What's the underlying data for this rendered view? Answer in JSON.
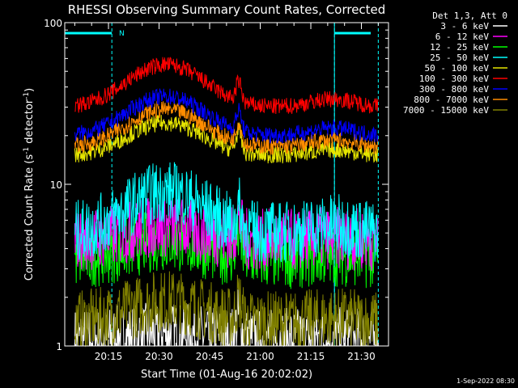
{
  "chart_data": {
    "type": "line",
    "title": "RHESSI Observing Summary Count Rates, Corrected",
    "xlabel": "Start Time (01-Aug-16 20:02:02)",
    "ylabel": "Corrected Count Rate (s",
    "ylabel_sup1": "-1",
    "ylabel_mid": " detector",
    "ylabel_sup2": "-1",
    "ylabel_end": ")",
    "yscale": "log",
    "ylim": [
      1,
      100
    ],
    "y_ticks": [
      "1",
      "10",
      "100"
    ],
    "xlim_minutes": [
      20.0333,
      21.6333
    ],
    "x_ticks": [
      "20:15",
      "20:30",
      "20:45",
      "21:00",
      "21:15",
      "21:30"
    ],
    "timestamp": "1-Sep-2022 08:30",
    "legend_header": "Det 1,3, Att 0",
    "attenuator_marker": "N",
    "grid": false,
    "series": [
      {
        "name": "3 - 6 keV",
        "color": "#ffffff",
        "level": 1.1,
        "peak": 1.2
      },
      {
        "name": "6 - 12 keV",
        "color": "#ff00ff",
        "level": 4.5,
        "peak": 5.5
      },
      {
        "name": "12 - 25 keV",
        "color": "#00ff00",
        "level": 3.5,
        "peak": 4.5
      },
      {
        "name": "25 - 50 keV",
        "color": "#00ffff",
        "level": 5.0,
        "peak": 9.0
      },
      {
        "name": "50 - 100 keV",
        "color": "#e6e600",
        "level": 15,
        "peak": 24
      },
      {
        "name": "100 - 300 keV",
        "color": "#ff0000",
        "level": 30,
        "peak": 55
      },
      {
        "name": "300 - 800 keV",
        "color": "#0000ff",
        "level": 20,
        "peak": 35
      },
      {
        "name": "800 - 7000 keV",
        "color": "#ff8c00",
        "level": 17,
        "peak": 29
      },
      {
        "name": "7000 - 15000 keV",
        "color": "#808000",
        "level": 1.4,
        "peak": 1.9
      }
    ]
  }
}
